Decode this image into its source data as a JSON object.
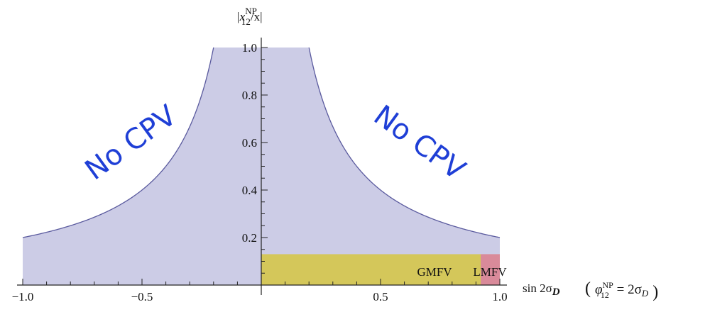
{
  "chart_data": {
    "type": "area",
    "ylabel": {
      "main": "|x",
      "sup": "NP",
      "sub": "12",
      "tail": "/x|"
    },
    "xlabel": {
      "main": "sin 2σ",
      "sub": "D"
    },
    "xlabel_note": {
      "open": "(",
      "phi": "φ",
      "sup": "NP",
      "sub": "12",
      "eq": " = 2σ",
      "eqsub": "D",
      "close": ")"
    },
    "xlim": [
      -1.0,
      1.0
    ],
    "ylim": [
      0,
      1.0
    ],
    "xticks": [
      -1.0,
      -0.5,
      0.5,
      1.0
    ],
    "xtick_labels": [
      "−1.0",
      "−0.5",
      "0.5",
      "1.0"
    ],
    "yticks": [
      0.2,
      0.4,
      0.6,
      0.8,
      1.0
    ],
    "ytick_labels": [
      "0.2",
      "0.4",
      "0.6",
      "0.8",
      "1.0"
    ],
    "allowed_region": {
      "boundary_formula": "|x12NP/x| = 0.2 / |sin 2σD|, capped at 1.0",
      "floor": 0.2,
      "cap": 1.0
    },
    "regions": [
      {
        "name": "GMFV",
        "label": "GMFV",
        "x": [
          0.0,
          1.0
        ],
        "y": [
          0,
          0.13
        ],
        "color": "#d4c75a"
      },
      {
        "name": "LMFV",
        "label": "LMFV",
        "x": [
          0.92,
          1.0
        ],
        "y": [
          0,
          0.13
        ],
        "color": "#d98a9a"
      }
    ],
    "annotations": [
      {
        "text": "No CPV",
        "side": "left",
        "rotation": -36
      },
      {
        "text": "No CPV",
        "side": "right",
        "rotation": 36
      }
    ],
    "colors": {
      "fill": "#cccce6",
      "curve": "#5a5a9e",
      "annotation": "#1f3fd6"
    }
  }
}
